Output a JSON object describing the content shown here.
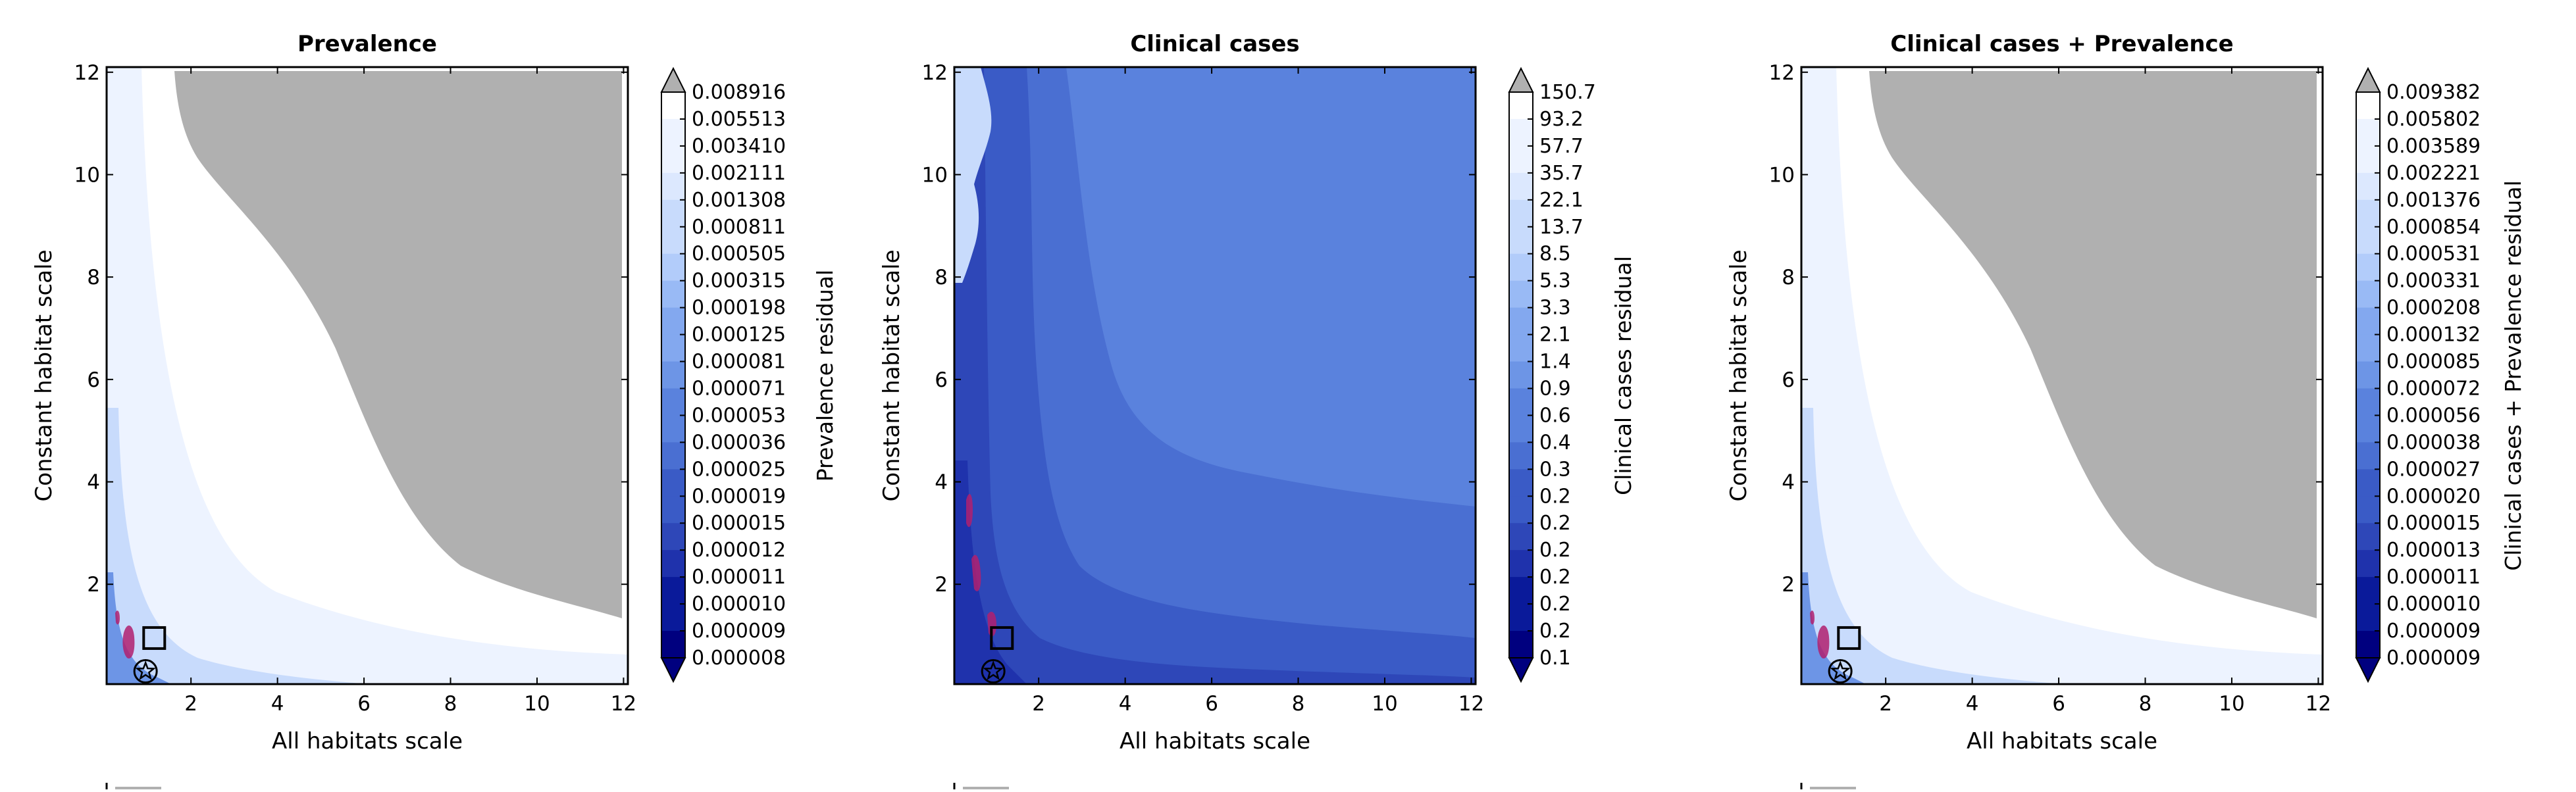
{
  "palette": {
    "blues": [
      "#00007f",
      "#0a1a9a",
      "#1f32ac",
      "#2e47b8",
      "#3a5bc6",
      "#4a6fd2",
      "#5a82dd",
      "#6d95e6",
      "#83a8ef",
      "#99baf5",
      "#b2ccfa",
      "#c8dbfc",
      "#dce8fe",
      "#edf3ff",
      "#ffffff"
    ],
    "grey": "#b0b0b0",
    "purple": "#b0206e"
  },
  "chart_data": [
    {
      "type": "heatmap",
      "title": "Prevalence",
      "xlabel": "All habitats scale",
      "ylabel": "Constant habitat scale",
      "xlim": [
        0.05,
        12.1
      ],
      "ylim": [
        0.05,
        12.1
      ],
      "xticks": [
        "2",
        "4",
        "6",
        "8",
        "10",
        "12"
      ],
      "yticks": [
        "2",
        "4",
        "6",
        "8",
        "10",
        "12"
      ],
      "colorbar_label": "Prevalence residual",
      "colorbar_ticks": [
        "0.008916",
        "0.005513",
        "0.003410",
        "0.002111",
        "0.001308",
        "0.000811",
        "0.000505",
        "0.000315",
        "0.000198",
        "0.000125",
        "0.000081",
        "0.000071",
        "0.000053",
        "0.000036",
        "0.000025",
        "0.000019",
        "0.000015",
        "0.000012",
        "0.000011",
        "0.000010",
        "0.000009",
        "0.000008"
      ],
      "grey_region": true,
      "square_marker": [
        1.15,
        0.95
      ],
      "star_marker": [
        0.95,
        0.3
      ]
    },
    {
      "type": "heatmap",
      "title": "Clinical cases",
      "xlabel": "All habitats scale",
      "ylabel": "Constant habitat scale",
      "xlim": [
        0.05,
        12.1
      ],
      "ylim": [
        0.05,
        12.1
      ],
      "xticks": [
        "2",
        "4",
        "6",
        "8",
        "10",
        "12"
      ],
      "yticks": [
        "2",
        "4",
        "6",
        "8",
        "10",
        "12"
      ],
      "colorbar_label": "Clinical cases residual",
      "colorbar_ticks": [
        "150.7",
        "93.2",
        "57.7",
        "35.7",
        "22.1",
        "13.7",
        "8.5",
        "5.3",
        "3.3",
        "2.1",
        "1.4",
        "0.9",
        "0.6",
        "0.4",
        "0.3",
        "0.2",
        "0.2",
        "0.2",
        "0.2",
        "0.2",
        "0.2",
        "0.1"
      ],
      "grey_region": false,
      "square_marker": [
        1.15,
        0.95
      ],
      "star_marker": [
        0.95,
        0.3
      ]
    },
    {
      "type": "heatmap",
      "title": "Clinical cases + Prevalence",
      "xlabel": "All habitats scale",
      "ylabel": "Constant habitat scale",
      "xlim": [
        0.05,
        12.1
      ],
      "ylim": [
        0.05,
        12.1
      ],
      "xticks": [
        "2",
        "4",
        "6",
        "8",
        "10",
        "12"
      ],
      "yticks": [
        "2",
        "4",
        "6",
        "8",
        "10",
        "12"
      ],
      "colorbar_label": "Clinical cases + Prevalence residual",
      "colorbar_ticks": [
        "0.009382",
        "0.005802",
        "0.003589",
        "0.002221",
        "0.001376",
        "0.000854",
        "0.000531",
        "0.000331",
        "0.000208",
        "0.000132",
        "0.000085",
        "0.000072",
        "0.000056",
        "0.000038",
        "0.000027",
        "0.000020",
        "0.000015",
        "0.000013",
        "0.000011",
        "0.000010",
        "0.000009",
        "0.000009"
      ],
      "grey_region": true,
      "square_marker": [
        1.15,
        0.95
      ],
      "star_marker": [
        0.95,
        0.3
      ]
    }
  ]
}
